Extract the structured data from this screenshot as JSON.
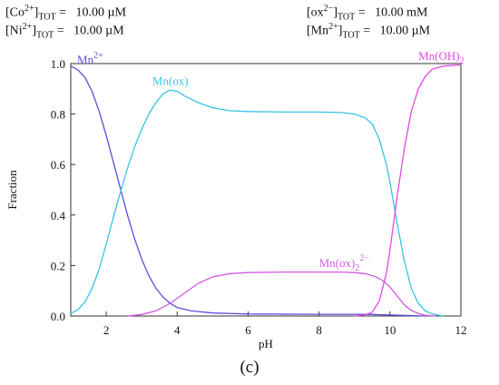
{
  "conditions": {
    "co": {
      "species": "Co",
      "charge": "2+",
      "sub": "TOT",
      "value": "10.00 µM"
    },
    "ni": {
      "species": "Ni",
      "charge": "2+",
      "sub": "TOT",
      "value": "10.00 µM"
    },
    "ox": {
      "species": "ox",
      "charge": "2−",
      "sub": "TOT",
      "value": "10.00 mM"
    },
    "mn": {
      "species": "Mn",
      "charge": "2+",
      "sub": "TOT",
      "value": "10.00 µM"
    }
  },
  "panel_label": "(c)",
  "chart_data": {
    "type": "line",
    "xlabel": "pH",
    "ylabel": "Fraction",
    "xlim": [
      1,
      12
    ],
    "ylim": [
      0,
      1
    ],
    "xticks": [
      2,
      4,
      6,
      8,
      10,
      12
    ],
    "yticks": [
      0.0,
      0.2,
      0.4,
      0.6,
      0.8,
      1.0
    ],
    "ytick_labels": [
      "0.0",
      "0.2",
      "0.4",
      "0.6",
      "0.8",
      "1.0"
    ],
    "grid": false,
    "colors": {
      "axes": "#333333",
      "mn2": "#5b4fd9",
      "mnox": "#38c4e6",
      "mnox2": "#d05ae0",
      "mnoh2": "#e04ae6"
    },
    "series": [
      {
        "key": "mn2",
        "label_base": "Mn",
        "label_sup": "2+",
        "label_sub": "",
        "label_pos": [
          1.18,
          1.0
        ],
        "points": [
          [
            1.0,
            0.99
          ],
          [
            1.2,
            0.975
          ],
          [
            1.4,
            0.945
          ],
          [
            1.6,
            0.89
          ],
          [
            1.8,
            0.81
          ],
          [
            2.0,
            0.715
          ],
          [
            2.2,
            0.61
          ],
          [
            2.4,
            0.505
          ],
          [
            2.6,
            0.4
          ],
          [
            2.8,
            0.305
          ],
          [
            3.0,
            0.225
          ],
          [
            3.2,
            0.16
          ],
          [
            3.4,
            0.11
          ],
          [
            3.6,
            0.075
          ],
          [
            3.8,
            0.05
          ],
          [
            4.0,
            0.033
          ],
          [
            4.4,
            0.02
          ],
          [
            5.0,
            0.012
          ],
          [
            6.0,
            0.008
          ],
          [
            8.0,
            0.007
          ],
          [
            9.0,
            0.007
          ],
          [
            9.5,
            0.006
          ],
          [
            10.0,
            0.004
          ],
          [
            10.5,
            0.002
          ],
          [
            11.0,
            0.0
          ]
        ]
      },
      {
        "key": "mnox",
        "label_base": "Mn(ox)",
        "label_sup": "",
        "label_sub": "",
        "label_pos": [
          3.3,
          0.915
        ],
        "points": [
          [
            1.0,
            0.01
          ],
          [
            1.2,
            0.025
          ],
          [
            1.4,
            0.055
          ],
          [
            1.6,
            0.11
          ],
          [
            1.8,
            0.185
          ],
          [
            2.0,
            0.285
          ],
          [
            2.2,
            0.39
          ],
          [
            2.4,
            0.49
          ],
          [
            2.6,
            0.585
          ],
          [
            2.8,
            0.67
          ],
          [
            3.0,
            0.74
          ],
          [
            3.2,
            0.8
          ],
          [
            3.4,
            0.845
          ],
          [
            3.6,
            0.88
          ],
          [
            3.8,
            0.895
          ],
          [
            4.0,
            0.89
          ],
          [
            4.2,
            0.872
          ],
          [
            4.6,
            0.845
          ],
          [
            5.0,
            0.825
          ],
          [
            5.5,
            0.813
          ],
          [
            6.0,
            0.81
          ],
          [
            7.0,
            0.808
          ],
          [
            8.0,
            0.808
          ],
          [
            8.6,
            0.806
          ],
          [
            9.0,
            0.8
          ],
          [
            9.3,
            0.785
          ],
          [
            9.5,
            0.76
          ],
          [
            9.7,
            0.7
          ],
          [
            9.9,
            0.6
          ],
          [
            10.0,
            0.53
          ],
          [
            10.2,
            0.37
          ],
          [
            10.4,
            0.22
          ],
          [
            10.6,
            0.11
          ],
          [
            10.8,
            0.05
          ],
          [
            11.0,
            0.02
          ],
          [
            11.2,
            0.008
          ],
          [
            11.5,
            0.0
          ]
        ]
      },
      {
        "key": "mnox2",
        "label_base": "Mn(ox)",
        "label_sup": "2−",
        "label_sub": "2",
        "label_pos": [
          8.0,
          0.195
        ],
        "points": [
          [
            2.6,
            0.0
          ],
          [
            3.0,
            0.006
          ],
          [
            3.4,
            0.02
          ],
          [
            3.8,
            0.05
          ],
          [
            4.2,
            0.09
          ],
          [
            4.6,
            0.13
          ],
          [
            5.0,
            0.155
          ],
          [
            5.5,
            0.168
          ],
          [
            6.0,
            0.172
          ],
          [
            7.0,
            0.174
          ],
          [
            8.0,
            0.174
          ],
          [
            8.6,
            0.174
          ],
          [
            9.0,
            0.172
          ],
          [
            9.3,
            0.168
          ],
          [
            9.6,
            0.155
          ],
          [
            9.8,
            0.14
          ],
          [
            10.0,
            0.115
          ],
          [
            10.2,
            0.08
          ],
          [
            10.4,
            0.045
          ],
          [
            10.6,
            0.022
          ],
          [
            10.8,
            0.01
          ],
          [
            11.0,
            0.003
          ],
          [
            11.3,
            0.0
          ]
        ]
      },
      {
        "key": "mnoh2",
        "label_base": "Mn(OH)",
        "label_sup": "",
        "label_sub": "2",
        "label_pos": [
          10.8,
          1.015
        ],
        "points": [
          [
            9.0,
            0.0
          ],
          [
            9.3,
            0.005
          ],
          [
            9.5,
            0.015
          ],
          [
            9.7,
            0.06
          ],
          [
            9.9,
            0.17
          ],
          [
            10.0,
            0.26
          ],
          [
            10.2,
            0.47
          ],
          [
            10.4,
            0.66
          ],
          [
            10.6,
            0.81
          ],
          [
            10.8,
            0.9
          ],
          [
            11.0,
            0.95
          ],
          [
            11.2,
            0.978
          ],
          [
            11.5,
            0.99
          ],
          [
            12.0,
            0.995
          ]
        ]
      }
    ]
  }
}
